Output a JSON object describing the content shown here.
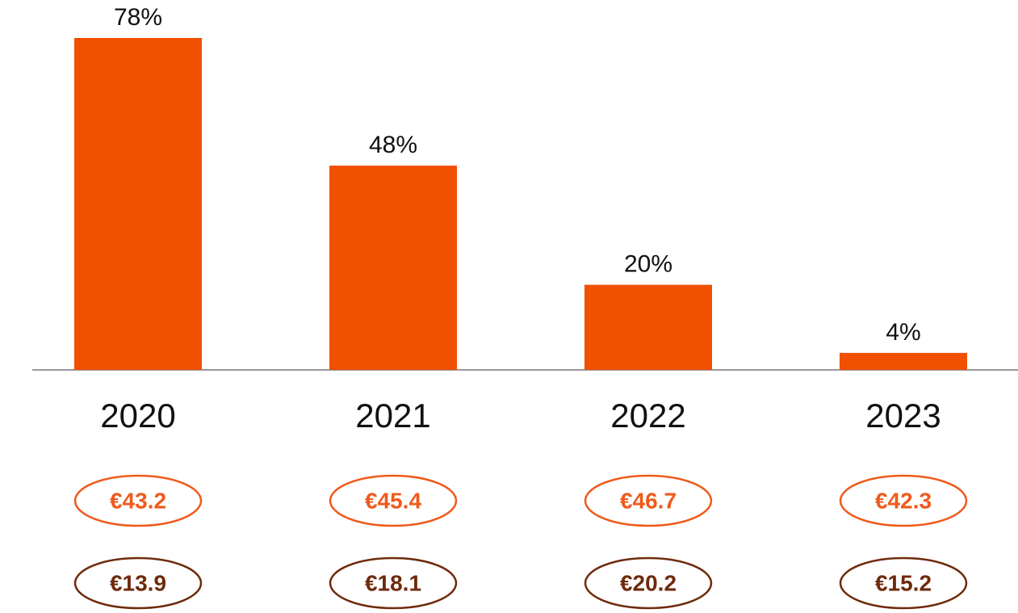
{
  "chart_data": {
    "type": "bar",
    "categories": [
      "2020",
      "2021",
      "2022",
      "2023"
    ],
    "values": [
      78,
      48,
      20,
      4
    ],
    "value_labels": [
      "78%",
      "48%",
      "20%",
      "4%"
    ],
    "color": "#f05000",
    "rows": [
      {
        "color": "#ef5a1c",
        "values": [
          43.2,
          45.4,
          46.7,
          42.3
        ],
        "value_labels": [
          "€43.2",
          "€45.4",
          "€46.7",
          "€42.3"
        ]
      },
      {
        "color": "#6e2a0c",
        "values": [
          13.9,
          18.1,
          20.2,
          15.2
        ],
        "value_labels": [
          "€13.9",
          "€18.1",
          "€20.2",
          "€15.2"
        ]
      }
    ]
  }
}
